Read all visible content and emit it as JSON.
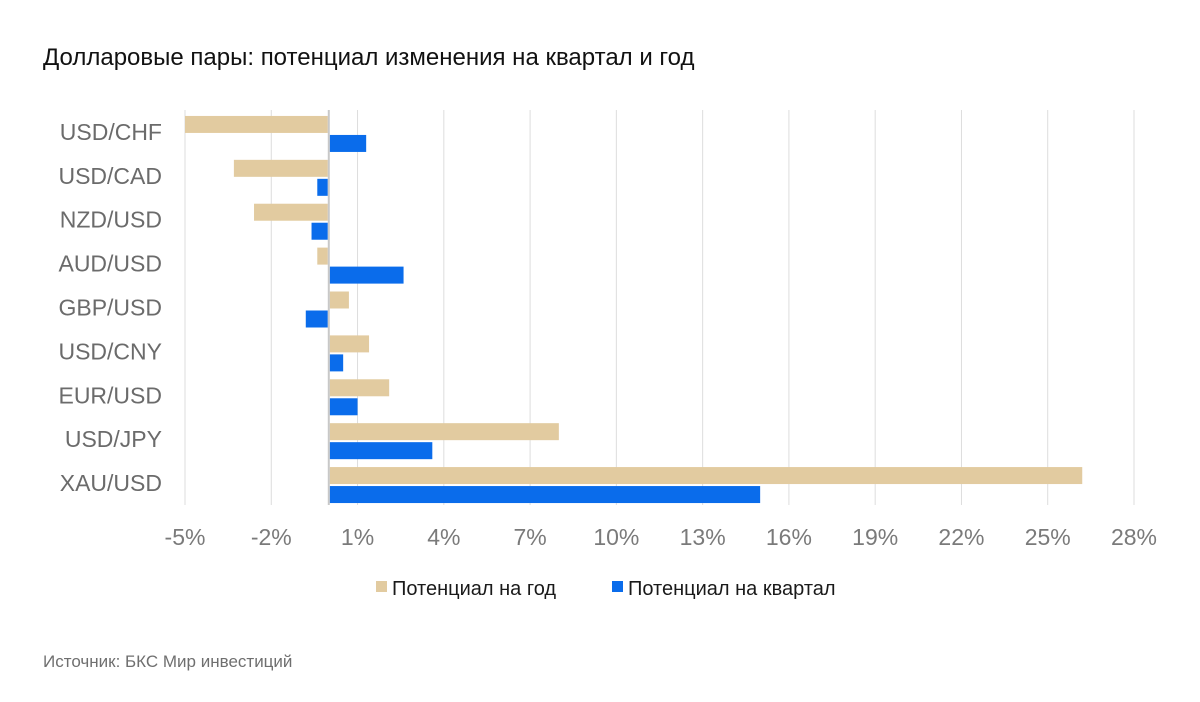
{
  "title": "Долларовые пары: потенциал изменения на квартал и год",
  "source": "Источник: БКС Мир инвестиций",
  "colors": {
    "year": "#E2CBA0",
    "quarter": "#0A6CEB",
    "grid": "#DDDDDD",
    "axis": "#C8C8C8"
  },
  "chart_data": {
    "type": "bar",
    "orientation": "horizontal",
    "title": "Долларовые пары: потенциал изменения на квартал и год",
    "xlabel": "",
    "ylabel": "",
    "categories": [
      "USD/CHF",
      "USD/CAD",
      "NZD/USD",
      "AUD/USD",
      "GBP/USD",
      "USD/CNY",
      "EUR/USD",
      "USD/JPY",
      "XAU/USD"
    ],
    "series": [
      {
        "name": "Потенциал на год",
        "values": [
          -5.0,
          -3.3,
          -2.6,
          -0.4,
          0.7,
          1.4,
          2.1,
          8.0,
          26.2
        ]
      },
      {
        "name": "Потенциал на квартал",
        "values": [
          1.3,
          -0.4,
          -0.6,
          2.6,
          -0.8,
          0.5,
          1.0,
          3.6,
          15.0
        ]
      }
    ],
    "xlim": [
      -5,
      28
    ],
    "xticks": [
      -5,
      -2,
      1,
      4,
      7,
      10,
      13,
      16,
      19,
      22,
      25,
      28
    ],
    "xtick_labels": [
      "-5%",
      "-2%",
      "1%",
      "4%",
      "7%",
      "10%",
      "13%",
      "16%",
      "19%",
      "22%",
      "25%",
      "28%"
    ],
    "grid": true,
    "legend_position": "bottom"
  }
}
